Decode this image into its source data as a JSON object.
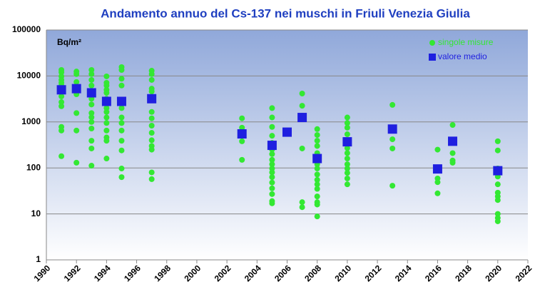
{
  "chart_data": {
    "type": "scatter",
    "title": "Andamento annuo del Cs-137 nei muschi in Friuli Venezia Giulia",
    "y_label": "Bq/m²",
    "log_y": true,
    "grid": true,
    "legend": "upper right",
    "xlim": [
      1990,
      2022
    ],
    "xticks": [
      1990,
      1992,
      1994,
      1996,
      1998,
      2000,
      2002,
      2004,
      2006,
      2008,
      2010,
      2012,
      2014,
      2016,
      2018,
      2020,
      2022
    ],
    "ylim": [
      1,
      100000
    ],
    "yticks": [
      1,
      10,
      100,
      1000,
      10000,
      100000
    ],
    "series": [
      {
        "name": "singole misure",
        "color": "#33e833",
        "marker": "circle",
        "x": [
          1991,
          1991,
          1991,
          1991,
          1991,
          1991,
          1991,
          1991,
          1991,
          1991,
          1991,
          1991,
          1991,
          1992,
          1992,
          1992,
          1992,
          1992,
          1992,
          1992,
          1992,
          1993,
          1993,
          1993,
          1993,
          1993,
          1993,
          1993,
          1993,
          1993,
          1993,
          1993,
          1993,
          1993,
          1993,
          1994,
          1994,
          1994,
          1994,
          1994,
          1994,
          1994,
          1994,
          1994,
          1994,
          1994,
          1994,
          1994,
          1994,
          1994,
          1995,
          1995,
          1995,
          1995,
          1995,
          1995,
          1995,
          1995,
          1995,
          1995,
          1995,
          1995,
          1997,
          1997,
          1997,
          1997,
          1997,
          1997,
          1997,
          1997,
          1997,
          1997,
          1997,
          1997,
          1997,
          1997,
          1997,
          2003,
          2003,
          2003,
          2003,
          2005,
          2005,
          2005,
          2005,
          2005,
          2005,
          2005,
          2005,
          2005,
          2005,
          2005,
          2005,
          2005,
          2005,
          2005,
          2005,
          2005,
          2007,
          2007,
          2007,
          2007,
          2007,
          2007,
          2008,
          2008,
          2008,
          2008,
          2008,
          2008,
          2008,
          2008,
          2008,
          2008,
          2008,
          2008,
          2008,
          2008,
          2008,
          2008,
          2010,
          2010,
          2010,
          2010,
          2010,
          2010,
          2010,
          2010,
          2010,
          2010,
          2010,
          2010,
          2010,
          2013,
          2013,
          2013,
          2013,
          2016,
          2016,
          2016,
          2016,
          2017,
          2017,
          2017,
          2017,
          2020,
          2020,
          2020,
          2020,
          2020,
          2020,
          2020,
          2020,
          2020,
          2020,
          2020
        ],
        "values": [
          13500,
          12000,
          9800,
          8200,
          7100,
          6200,
          4800,
          3600,
          2700,
          2200,
          780,
          650,
          180,
          12500,
          11000,
          7400,
          5300,
          4000,
          1560,
          650,
          130,
          13500,
          11000,
          8200,
          6200,
          4600,
          3200,
          2400,
          1560,
          1260,
          1000,
          720,
          390,
          265,
          112,
          9800,
          7100,
          6200,
          5000,
          4300,
          3200,
          2400,
          2000,
          1650,
          1250,
          950,
          650,
          460,
          390,
          160,
          15600,
          13500,
          8700,
          6200,
          2000,
          1250,
          950,
          650,
          390,
          240,
          97,
          63,
          13000,
          11000,
          8200,
          5300,
          4600,
          3000,
          1650,
          1200,
          830,
          580,
          400,
          300,
          250,
          80,
          57,
          1200,
          750,
          380,
          150,
          2000,
          1250,
          780,
          500,
          350,
          250,
          200,
          150,
          120,
          97,
          80,
          63,
          48,
          36,
          27,
          19,
          17,
          4150,
          2250,
          1370,
          265,
          18,
          14,
          700,
          520,
          390,
          300,
          210,
          150,
          120,
          97,
          72,
          55,
          44,
          35,
          24,
          18,
          16,
          8.8,
          1250,
          950,
          750,
          540,
          360,
          270,
          210,
          160,
          120,
          97,
          78,
          59,
          44,
          2350,
          420,
          265,
          41,
          250,
          59,
          49,
          28,
          860,
          210,
          145,
          130,
          380,
          240,
          97,
          65,
          44,
          29,
          24,
          20,
          10,
          8.2,
          6.9
        ]
      },
      {
        "name": "valore medio",
        "color": "#1f1fe0",
        "marker": "square",
        "x": [
          1991,
          1992,
          1993,
          1994,
          1995,
          1997,
          2003,
          2005,
          2006,
          2007,
          2008,
          2010,
          2013,
          2016,
          2017,
          2020
        ],
        "values": [
          5000,
          5300,
          4300,
          2800,
          2800,
          3200,
          550,
          310,
          600,
          1250,
          160,
          370,
          700,
          95,
          380,
          87
        ]
      }
    ]
  }
}
